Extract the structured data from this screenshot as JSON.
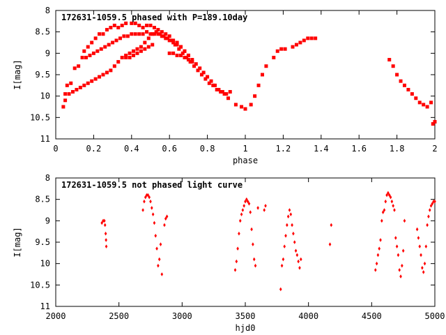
{
  "chart_data": [
    {
      "type": "scatter",
      "title": "172631-1059.5 phased with P=189.10day",
      "xlabel": "phase",
      "ylabel": "I[mag]",
      "xlim": [
        0,
        2
      ],
      "ylim": [
        11,
        8
      ],
      "y_reversed": true,
      "xticks": [
        "0",
        "0.2",
        "0.4",
        "0.6",
        "0.8",
        "1",
        "1.2",
        "1.4",
        "1.6",
        "1.8",
        "2"
      ],
      "yticks": [
        "8",
        "8.5",
        "9",
        "9.5",
        "10",
        "10.5",
        "11"
      ],
      "grid": false,
      "marker_color": "#ff0000",
      "series": [
        {
          "x": [
            0.04,
            0.05,
            0.06,
            0.08,
            0.1,
            0.12,
            0.14,
            0.15,
            0.17,
            0.19,
            0.21,
            0.23,
            0.25,
            0.27,
            0.29,
            0.31,
            0.33,
            0.35,
            0.37,
            0.4,
            0.42,
            0.44,
            0.46,
            0.48,
            0.5,
            0.52,
            0.54,
            0.56,
            0.58,
            0.6,
            0.62,
            0.64,
            0.66,
            0.68,
            0.7,
            0.16,
            0.18,
            0.2,
            0.22,
            0.24,
            0.26,
            0.28,
            0.3,
            0.32,
            0.34,
            0.36,
            0.38,
            0.4,
            0.42,
            0.44,
            0.46,
            0.48,
            0.5,
            0.52,
            0.54,
            0.56,
            0.58,
            0.6,
            0.62,
            0.64,
            0.66,
            0.68,
            0.7,
            0.72,
            0.74,
            0.76,
            0.78,
            0.8,
            0.82,
            0.84,
            0.86,
            0.88,
            0.9,
            0.05,
            0.07,
            0.09,
            0.11,
            0.13,
            0.15,
            0.17,
            0.19,
            0.21,
            0.23,
            0.25,
            0.27,
            0.29,
            0.31,
            0.33,
            0.35,
            0.37,
            0.39,
            0.41,
            0.43,
            0.45,
            0.47,
            0.49,
            0.51,
            0.53,
            0.55,
            0.57,
            0.59,
            0.61,
            0.63,
            0.65,
            0.67,
            0.69,
            0.71,
            0.73,
            0.75,
            0.77,
            0.79,
            0.81,
            0.83,
            0.85,
            0.87,
            0.89,
            0.91,
            0.37,
            0.39,
            0.41,
            0.43,
            0.45,
            0.47,
            0.49,
            0.51,
            0.6,
            0.62,
            0.64,
            0.66,
            0.68,
            0.7,
            0.72,
            0.92,
            0.95,
            0.98,
            1.0,
            1.03,
            1.05,
            1.07,
            1.09,
            1.11,
            1.15,
            1.17,
            1.19,
            1.21,
            1.25,
            1.27,
            1.29,
            1.31,
            1.33,
            1.35,
            1.37,
            1.76,
            1.78,
            1.8,
            1.82,
            1.84,
            1.86,
            1.88,
            1.9,
            1.92,
            1.94,
            1.96,
            1.98,
            1.99,
            2.0
          ],
          "y": [
            10.25,
            9.95,
            9.75,
            9.7,
            9.35,
            9.3,
            9.1,
            8.95,
            8.85,
            8.75,
            8.65,
            8.55,
            8.55,
            8.45,
            8.4,
            8.35,
            8.4,
            8.35,
            8.3,
            8.3,
            8.3,
            8.35,
            8.4,
            8.35,
            8.35,
            8.4,
            8.45,
            8.5,
            8.55,
            8.6,
            8.7,
            8.75,
            8.85,
            8.95,
            9.05,
            9.1,
            9.05,
            9.0,
            8.95,
            8.9,
            8.85,
            8.8,
            8.75,
            8.7,
            8.65,
            8.6,
            8.6,
            8.55,
            8.55,
            8.55,
            8.55,
            8.5,
            8.55,
            8.55,
            8.55,
            8.6,
            8.65,
            8.7,
            8.75,
            8.8,
            8.85,
            8.95,
            9.05,
            9.15,
            9.25,
            9.35,
            9.45,
            9.55,
            9.65,
            9.75,
            9.85,
            9.9,
            9.95,
            10.1,
            9.95,
            9.9,
            9.85,
            9.8,
            9.75,
            9.7,
            9.65,
            9.6,
            9.55,
            9.5,
            9.45,
            9.4,
            9.3,
            9.2,
            9.1,
            9.05,
            9.0,
            8.95,
            8.9,
            8.85,
            8.75,
            8.65,
            8.55,
            8.5,
            8.55,
            8.6,
            8.65,
            8.7,
            8.8,
            8.9,
            9.0,
            9.1,
            9.2,
            9.3,
            9.4,
            9.5,
            9.6,
            9.7,
            9.75,
            9.85,
            9.9,
            9.95,
            10.05,
            9.1,
            9.1,
            9.05,
            9.0,
            8.95,
            8.9,
            8.85,
            8.8,
            9.0,
            9.0,
            9.05,
            9.05,
            9.1,
            9.15,
            9.2,
            9.9,
            10.2,
            10.25,
            10.3,
            10.2,
            10.0,
            9.75,
            9.5,
            9.3,
            9.1,
            8.95,
            8.9,
            8.9,
            8.85,
            8.8,
            8.75,
            8.7,
            8.65,
            8.65,
            8.65,
            9.15,
            9.3,
            9.5,
            9.65,
            9.75,
            9.85,
            9.95,
            10.05,
            10.15,
            10.2,
            10.25,
            10.15,
            10.65,
            10.6
          ]
        }
      ]
    },
    {
      "type": "scatter",
      "title": "172631-1059.5 not phased light curve",
      "xlabel": "hjd0",
      "ylabel": "I[mag]",
      "xlim": [
        2000,
        5000
      ],
      "ylim": [
        11,
        8
      ],
      "y_reversed": true,
      "xticks": [
        "2000",
        "2500",
        "3000",
        "3500",
        "4000",
        "4500",
        "5000"
      ],
      "yticks": [
        "8",
        "8.5",
        "9",
        "9.5",
        "10",
        "10.5",
        "11"
      ],
      "grid": false,
      "marker_color": "#ff0000",
      "series": [
        {
          "x": [
            2365,
            2375,
            2385,
            2390,
            2395,
            2398,
            2400,
            2690,
            2700,
            2710,
            2720,
            2730,
            2740,
            2750,
            2760,
            2770,
            2780,
            2790,
            2800,
            2810,
            2820,
            2830,
            2840,
            2860,
            2870,
            2880,
            3420,
            3430,
            3440,
            3450,
            3460,
            3470,
            3480,
            3490,
            3500,
            3510,
            3520,
            3530,
            3540,
            3550,
            3560,
            3570,
            3580,
            3600,
            3650,
            3660,
            3780,
            3790,
            3800,
            3810,
            3820,
            3830,
            3840,
            3850,
            3860,
            3870,
            3880,
            3890,
            3900,
            3910,
            3920,
            3930,
            3940,
            4170,
            4180,
            4530,
            4540,
            4550,
            4560,
            4570,
            4580,
            4590,
            4600,
            4610,
            4620,
            4630,
            4640,
            4650,
            4660,
            4670,
            4680,
            4690,
            4700,
            4710,
            4720,
            4730,
            4740,
            4750,
            4760,
            4860,
            4870,
            4880,
            4890,
            4900,
            4910,
            4920,
            4930,
            4940,
            4950,
            4960,
            4970,
            4980,
            4990,
            5000
          ],
          "y": [
            9.05,
            9.0,
            9.0,
            9.1,
            9.3,
            9.45,
            9.6,
            8.75,
            8.55,
            8.45,
            8.4,
            8.4,
            8.45,
            8.55,
            8.7,
            8.85,
            9.05,
            9.35,
            9.65,
            10.05,
            9.9,
            9.55,
            10.25,
            9.1,
            8.95,
            8.9,
            10.15,
            9.95,
            9.65,
            9.3,
            9.0,
            8.85,
            8.75,
            8.65,
            8.55,
            8.5,
            8.55,
            8.6,
            8.8,
            9.2,
            9.55,
            9.9,
            10.05,
            8.7,
            8.75,
            8.65,
            10.6,
            10.05,
            9.9,
            9.6,
            9.35,
            9.1,
            8.9,
            8.75,
            8.85,
            9.1,
            9.3,
            9.5,
            9.7,
            9.8,
            9.95,
            10.1,
            9.9,
            9.55,
            9.1,
            10.15,
            10.0,
            9.8,
            9.65,
            9.45,
            9.0,
            8.8,
            8.75,
            8.55,
            8.4,
            8.35,
            8.4,
            8.45,
            8.55,
            8.65,
            8.75,
            9.4,
            9.6,
            9.8,
            10.15,
            10.3,
            10.05,
            9.7,
            9.0,
            9.2,
            9.4,
            9.6,
            9.8,
            10.1,
            10.2,
            10.0,
            9.6,
            9.1,
            8.9,
            8.75,
            8.65,
            8.6,
            8.55,
            8.55
          ]
        }
      ]
    }
  ]
}
